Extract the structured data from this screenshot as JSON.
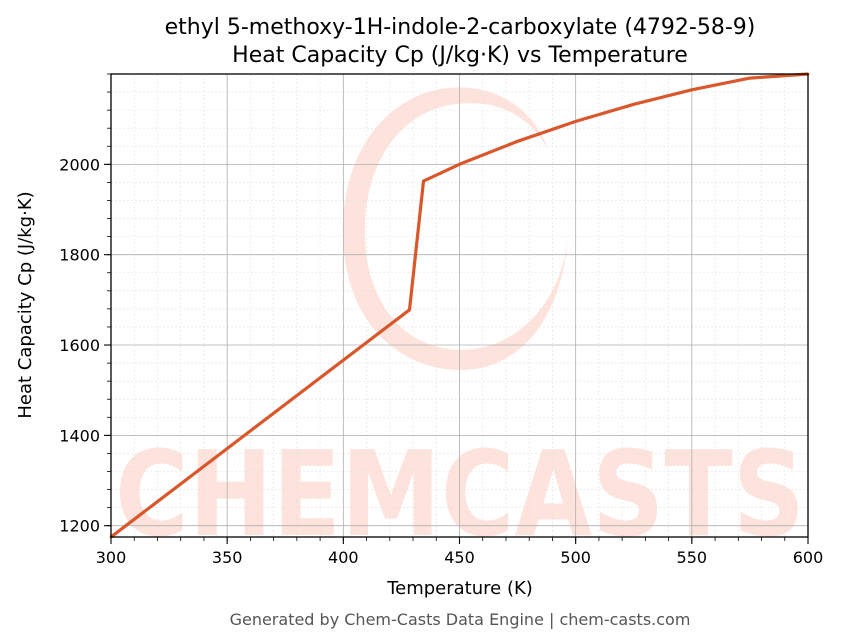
{
  "colors": {
    "series": "#d9572b",
    "watermark": "#fde0d8",
    "major_grid": "#b0b0b0",
    "minor_grid": "#e2e2e2",
    "footer_text": "#555555"
  },
  "watermark_text": "CHEMCASTS",
  "footer": "Generated by Chem-Casts Data Engine | chem-casts.com",
  "chart_data": {
    "type": "line",
    "title": "ethyl 5-methoxy-1H-indole-2-carboxylate (4792-58-9)",
    "subtitle": "Heat Capacity Cp (J/kg·K) vs Temperature",
    "xlabel": "Temperature (K)",
    "ylabel": "Heat Capacity Cp (J/kg·K)",
    "xlim": [
      300,
      600
    ],
    "ylim": [
      1175,
      2200
    ],
    "x_ticks": [
      300,
      350,
      400,
      450,
      500,
      550,
      600
    ],
    "y_ticks": [
      1200,
      1400,
      1600,
      1800,
      2000
    ],
    "grid": true,
    "series": [
      {
        "color": "#d9572b",
        "x": [
          300,
          428.5,
          434.5,
          450,
          475,
          500,
          525,
          550,
          575,
          600
        ],
        "y": [
          1175,
          1678,
          1963,
          2000,
          2051,
          2095,
          2133,
          2165,
          2191,
          2200
        ]
      }
    ]
  }
}
